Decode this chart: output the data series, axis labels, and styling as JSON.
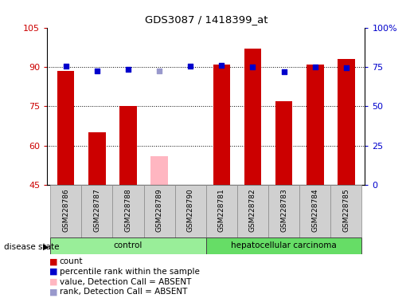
{
  "title": "GDS3087 / 1418399_at",
  "samples": [
    "GSM228786",
    "GSM228787",
    "GSM228788",
    "GSM228789",
    "GSM228790",
    "GSM228781",
    "GSM228782",
    "GSM228783",
    "GSM228784",
    "GSM228785"
  ],
  "count_values": [
    88.5,
    65.0,
    75.0,
    null,
    null,
    91.0,
    97.0,
    77.0,
    91.0,
    93.0
  ],
  "absent_count_values": [
    null,
    null,
    null,
    56.0,
    null,
    null,
    null,
    null,
    null,
    null
  ],
  "percentile_values": [
    75.5,
    72.5,
    73.5,
    null,
    75.5,
    76.0,
    75.0,
    72.0,
    75.0,
    74.5
  ],
  "absent_percentile_values": [
    null,
    null,
    null,
    72.5,
    null,
    null,
    null,
    null,
    null,
    null
  ],
  "ylim_left": [
    45,
    105
  ],
  "ylim_right": [
    0,
    100
  ],
  "yticks_left": [
    45,
    60,
    75,
    90,
    105
  ],
  "ytick_labels_left": [
    "45",
    "60",
    "75",
    "90",
    "105"
  ],
  "yticks_right": [
    0,
    25,
    50,
    75,
    100
  ],
  "ytick_labels_right": [
    "0",
    "25",
    "50",
    "75",
    "100%"
  ],
  "bar_color": "#cc0000",
  "absent_bar_color": "#ffb6c1",
  "dot_color": "#0000cc",
  "absent_dot_color": "#9999cc",
  "bar_width": 0.55,
  "dot_size": 25,
  "background_color": "#ffffff",
  "gridlines": [
    60,
    75,
    90
  ],
  "legend_items": [
    {
      "label": "count",
      "color": "#cc0000"
    },
    {
      "label": "percentile rank within the sample",
      "color": "#0000cc"
    },
    {
      "label": "value, Detection Call = ABSENT",
      "color": "#ffb6c1"
    },
    {
      "label": "rank, Detection Call = ABSENT",
      "color": "#9999cc"
    }
  ],
  "groups_info": [
    {
      "label": "control",
      "start": 0,
      "end": 4,
      "color": "#99ee99"
    },
    {
      "label": "hepatocellular carcinoma",
      "start": 5,
      "end": 9,
      "color": "#66dd66"
    }
  ]
}
